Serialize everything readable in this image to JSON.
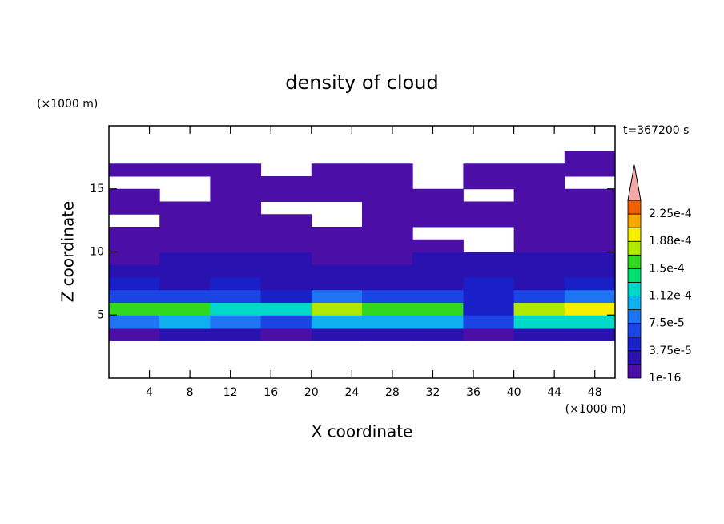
{
  "chart_data": {
    "type": "contour",
    "title": "density of cloud",
    "xlabel": "X coordinate",
    "ylabel": "Z coordinate",
    "x_unit": "(×1000 m)",
    "y_unit": "(×1000 m)",
    "annotation": "t=367200 s",
    "xlim": [
      0,
      50
    ],
    "ylim": [
      0,
      20
    ],
    "xticks": [
      4,
      8,
      12,
      16,
      20,
      24,
      28,
      32,
      36,
      40,
      44,
      48
    ],
    "yticks": [
      5,
      10,
      15
    ],
    "x": [
      2.5,
      7.5,
      12.5,
      17.5,
      22.5,
      27.5,
      32.5,
      37.5,
      42.5,
      47.5
    ],
    "y": [
      3.5,
      4.5,
      5.5,
      6.5,
      7.5,
      8.5,
      9.5,
      10.5,
      11.5,
      12.5,
      13.5,
      14.5,
      15.5,
      16.5,
      17.5
    ],
    "z": [
      [
        1e-05,
        2e-05,
        2e-05,
        1e-05,
        2e-05,
        2e-05,
        2e-05,
        1e-05,
        2e-05,
        2e-05
      ],
      [
        9e-05,
        0.00011,
        8e-05,
        7e-05,
        0.00011,
        0.00011,
        0.0001,
        6e-05,
        0.00012,
        0.00012
      ],
      [
        0.00015,
        0.00016,
        0.00012,
        0.00013,
        0.00017,
        0.00016,
        0.00015,
        5e-05,
        0.00017,
        0.00019
      ],
      [
        6e-05,
        7e-05,
        7e-05,
        5e-05,
        8e-05,
        7e-05,
        6e-05,
        5e-05,
        7e-05,
        9e-05
      ],
      [
        4e-05,
        3e-05,
        5e-05,
        3e-05,
        3e-05,
        3e-05,
        3e-05,
        4e-05,
        3e-05,
        4e-05
      ],
      [
        2e-05,
        2e-05,
        3e-05,
        2e-05,
        2e-05,
        2e-05,
        2e-05,
        2e-05,
        2e-05,
        2e-05
      ],
      [
        1e-05,
        2e-05,
        2e-05,
        2e-05,
        1e-05,
        1e-05,
        2e-05,
        2e-05,
        2e-05,
        2e-05
      ],
      [
        1e-05,
        1e-05,
        1e-05,
        1e-05,
        1e-05,
        1e-05,
        1e-05,
        0,
        1e-05,
        1e-05
      ],
      [
        1e-05,
        1e-05,
        5e-06,
        5e-06,
        5e-06,
        5e-06,
        0,
        0,
        5e-06,
        5e-06
      ],
      [
        0,
        5e-06,
        5e-06,
        5e-06,
        0,
        5e-06,
        5e-06,
        5e-06,
        5e-06,
        5e-06
      ],
      [
        5e-06,
        5e-06,
        5e-06,
        0,
        0,
        5e-06,
        5e-06,
        5e-06,
        5e-06,
        5e-06
      ],
      [
        5e-06,
        0,
        5e-06,
        5e-06,
        5e-06,
        5e-06,
        5e-06,
        0,
        5e-06,
        5e-06
      ],
      [
        0,
        0,
        5e-06,
        5e-06,
        5e-06,
        5e-06,
        0,
        5e-06,
        5e-06,
        0
      ],
      [
        5e-06,
        5e-06,
        5e-06,
        0,
        5e-06,
        5e-06,
        0,
        5e-06,
        5e-06,
        5e-06
      ],
      [
        0,
        0,
        0,
        0,
        0,
        0,
        0,
        0,
        0,
        5e-06
      ]
    ],
    "colorbar": {
      "clim": [
        1e-16,
        0.00024375
      ],
      "levels": [
        1e-16,
        1.875e-05,
        3.75e-05,
        5.625e-05,
        7.5e-05,
        9.375e-05,
        0.0001125,
        0.00013125,
        0.00015,
        0.00016875,
        0.0001875,
        0.00020625,
        0.000225
      ],
      "colors": [
        "#4b0fa8",
        "#2a12b0",
        "#1a20c8",
        "#1a44e4",
        "#1f74f4",
        "#10b0f0",
        "#00d8c8",
        "#00e070",
        "#30d820",
        "#b0e800",
        "#f4f000",
        "#f4a800",
        "#f06000"
      ],
      "over_color": "#f4a8a8",
      "ticks": [
        {
          "value": 1e-16,
          "label": "1e-16"
        },
        {
          "value": 3.75e-05,
          "label": "3.75e-5"
        },
        {
          "value": 7.5e-05,
          "label": "7.5e-5"
        },
        {
          "value": 0.0001125,
          "label": "1.12e-4"
        },
        {
          "value": 0.00015,
          "label": "1.5e-4"
        },
        {
          "value": 0.0001875,
          "label": "1.88e-4"
        },
        {
          "value": 0.000225,
          "label": "2.25e-4"
        }
      ]
    }
  }
}
